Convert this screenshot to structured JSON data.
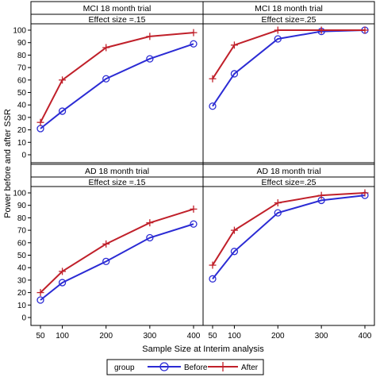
{
  "chart_data": {
    "type": "line",
    "ylabel": "Power before and after SSR",
    "xlabel": "Sample Size at Interim analysis",
    "x": [
      50,
      100,
      200,
      300,
      400
    ],
    "x_ticks": [
      "50",
      "100",
      "200",
      "300",
      "400"
    ],
    "y_ticks": [
      "0",
      "10",
      "20",
      "30",
      "40",
      "50",
      "60",
      "70",
      "80",
      "90",
      "100"
    ],
    "ylim": [
      0,
      100
    ],
    "grid": false,
    "legend": {
      "placement": "bottom",
      "title": "group",
      "entries": [
        {
          "label": "Before",
          "color": "#2b2bd4",
          "marker": "circle"
        },
        {
          "label": "After",
          "color": "#c0202a",
          "marker": "plus"
        }
      ]
    },
    "panels": [
      {
        "trial": "MCI 18 month trial",
        "effect": "Effect size =.15",
        "series": [
          {
            "name": "Before",
            "values": [
              21,
              35,
              61,
              77,
              89
            ]
          },
          {
            "name": "After",
            "values": [
              26,
              60,
              86,
              95,
              98
            ]
          }
        ]
      },
      {
        "trial": "MCI 18 month trial",
        "effect": "Effect size=.25",
        "series": [
          {
            "name": "Before",
            "values": [
              39,
              65,
              93,
              99,
              100
            ]
          },
          {
            "name": "After",
            "values": [
              61,
              88,
              100,
              100,
              100
            ]
          }
        ]
      },
      {
        "trial": "AD 18 month trial",
        "effect": "Effect size =.15",
        "series": [
          {
            "name": "Before",
            "values": [
              14,
              28,
              45,
              64,
              75
            ]
          },
          {
            "name": "After",
            "values": [
              20,
              37,
              59,
              76,
              87
            ]
          }
        ]
      },
      {
        "trial": "AD 18 month trial",
        "effect": "Effect size=.25",
        "series": [
          {
            "name": "Before",
            "values": [
              31,
              53,
              84,
              94,
              98
            ]
          },
          {
            "name": "After",
            "values": [
              42,
              70,
              92,
              98,
              100
            ]
          }
        ]
      }
    ]
  }
}
